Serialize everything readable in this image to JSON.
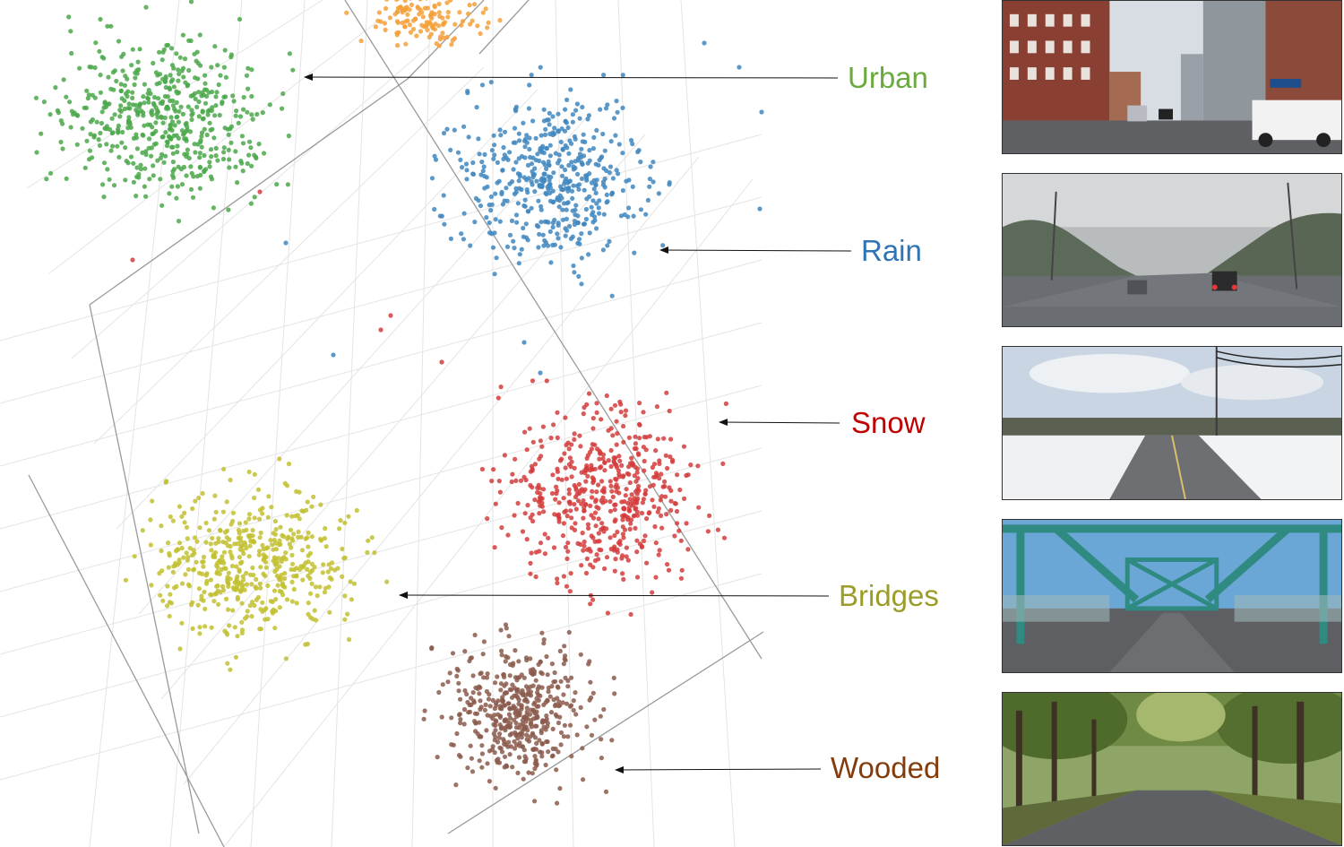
{
  "chart_data": {
    "type": "scatter",
    "title": "",
    "xlabel": "",
    "ylabel": "",
    "grid": true,
    "projection": "3d",
    "series": [
      {
        "name": "Urban",
        "color": "#4aa84a",
        "count": 520
      },
      {
        "name": "Rain",
        "color": "#3f87c0",
        "count": 480
      },
      {
        "name": "Snow",
        "color": "#d43c3c",
        "count": 520
      },
      {
        "name": "Bridges",
        "color": "#c2c030",
        "count": 480
      },
      {
        "name": "Wooded",
        "color": "#8b5a4c",
        "count": 470
      },
      {
        "color": "#f4a03a",
        "count": 130
      }
    ],
    "annotations": [
      {
        "text": "Urban",
        "color": "#6aaa3e"
      },
      {
        "text": "Rain",
        "color": "#2e75b6"
      },
      {
        "text": "Snow",
        "color": "#c00000"
      },
      {
        "text": "Bridges",
        "color": "#9c9c28"
      },
      {
        "text": "Wooded",
        "color": "#843c0c"
      }
    ]
  },
  "thumbnails": [
    {
      "scene": "urban",
      "description_icon": "city-street-icon"
    },
    {
      "scene": "rain",
      "description_icon": "rainy-highway-icon"
    },
    {
      "scene": "snow",
      "description_icon": "snowy-road-icon"
    },
    {
      "scene": "bridges",
      "description_icon": "steel-bridge-icon"
    },
    {
      "scene": "wooded",
      "description_icon": "forest-road-icon"
    }
  ]
}
